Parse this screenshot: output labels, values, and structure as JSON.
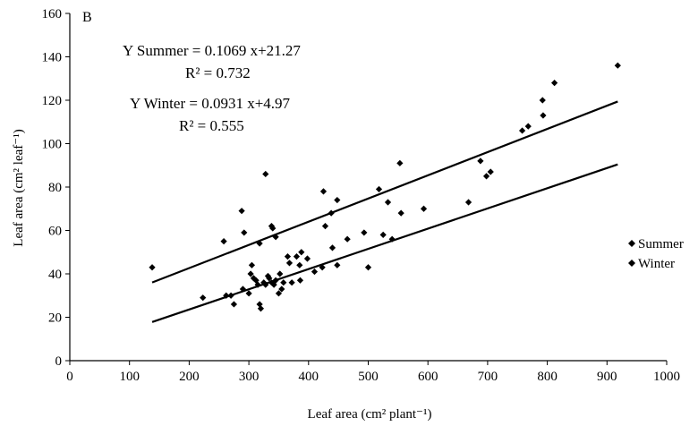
{
  "chart_data": {
    "type": "scatter",
    "panel_label": "B",
    "xlabel": "Leaf area (cm² plant⁻¹)",
    "ylabel": "Leaf area (cm² leaf⁻¹)",
    "xlim": [
      0,
      1000
    ],
    "ylim": [
      0,
      160
    ],
    "x_ticks": [
      0,
      100,
      200,
      300,
      400,
      500,
      600,
      700,
      800,
      900,
      1000
    ],
    "y_ticks": [
      0,
      20,
      40,
      60,
      80,
      100,
      120,
      140,
      160
    ],
    "grid": false,
    "legend_position": "right",
    "legend": [
      "Summer",
      "Winter"
    ],
    "annotations": {
      "summer_eq": "Y Summer  = 0.1069 x+21.27",
      "summer_r2": "R² = 0.732",
      "winter_eq": "Y Winter = 0.0931 x+4.97",
      "winter_r2": "R² =  0.555"
    },
    "series": [
      {
        "name": "Summer",
        "marker": "diamond",
        "color": "#000000",
        "fit": {
          "slope": 0.1069,
          "intercept": 21.27,
          "x_range": [
            138,
            918
          ]
        },
        "points": [
          [
            138,
            43
          ],
          [
            258,
            55
          ],
          [
            288,
            69
          ],
          [
            292,
            59
          ],
          [
            318,
            54
          ],
          [
            328,
            86
          ],
          [
            338,
            62
          ],
          [
            340,
            61
          ],
          [
            345,
            57
          ],
          [
            425,
            78
          ],
          [
            428,
            62
          ],
          [
            438,
            68
          ],
          [
            448,
            74
          ],
          [
            518,
            79
          ],
          [
            533,
            73
          ],
          [
            553,
            91
          ],
          [
            555,
            68
          ],
          [
            593,
            70
          ],
          [
            668,
            73
          ],
          [
            688,
            92
          ],
          [
            698,
            85
          ],
          [
            705,
            87
          ],
          [
            758,
            106
          ],
          [
            768,
            108
          ],
          [
            792,
            120
          ],
          [
            793,
            113
          ],
          [
            812,
            128
          ],
          [
            918,
            136
          ]
        ]
      },
      {
        "name": "Winter",
        "marker": "diamond",
        "color": "#000000",
        "fit": {
          "slope": 0.0931,
          "intercept": 4.97,
          "x_range": [
            138,
            918
          ]
        },
        "points": [
          [
            223,
            29
          ],
          [
            262,
            30
          ],
          [
            270,
            30
          ],
          [
            275,
            26
          ],
          [
            290,
            33
          ],
          [
            300,
            31
          ],
          [
            303,
            40
          ],
          [
            305,
            44
          ],
          [
            308,
            38
          ],
          [
            312,
            37
          ],
          [
            315,
            35
          ],
          [
            318,
            26
          ],
          [
            320,
            24
          ],
          [
            325,
            36
          ],
          [
            328,
            35
          ],
          [
            332,
            39
          ],
          [
            334,
            38
          ],
          [
            338,
            36
          ],
          [
            342,
            35
          ],
          [
            345,
            37
          ],
          [
            350,
            31
          ],
          [
            352,
            40
          ],
          [
            355,
            33
          ],
          [
            358,
            36
          ],
          [
            365,
            48
          ],
          [
            368,
            45
          ],
          [
            372,
            36
          ],
          [
            380,
            48
          ],
          [
            385,
            44
          ],
          [
            386,
            37
          ],
          [
            388,
            50
          ],
          [
            398,
            47
          ],
          [
            410,
            41
          ],
          [
            423,
            43
          ],
          [
            440,
            52
          ],
          [
            448,
            44
          ],
          [
            465,
            56
          ],
          [
            493,
            59
          ],
          [
            500,
            43
          ],
          [
            525,
            58
          ],
          [
            540,
            56
          ]
        ]
      }
    ]
  }
}
